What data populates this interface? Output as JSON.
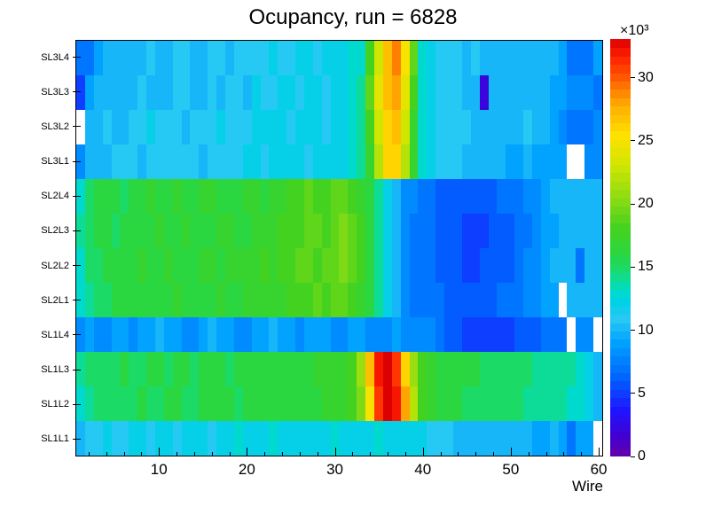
{
  "chart": {
    "title": "Ocupancy, run = 6828",
    "xlabel": "Wire",
    "exponent_label": "×10³"
  },
  "chart_data": {
    "type": "heatmap",
    "title": "Ocupancy, run = 6828",
    "xlabel": "Wire",
    "ylabel": "",
    "x_range": [
      0.5,
      60.5
    ],
    "x_ticks": [
      10,
      20,
      30,
      40,
      50,
      60
    ],
    "x_minor_tick_step": 2,
    "zmin": 0,
    "zmax": 33,
    "z_unit": 1000,
    "z_scale_label": "×10³",
    "colorbar_ticks": [
      0,
      5,
      10,
      15,
      20,
      25,
      30
    ],
    "colorbar_position": "right",
    "empty_bin_color": "#ffffff",
    "values_note": "bin contents in units of 10^3 counts; 0 = empty bin drawn white",
    "palette": [
      [
        0.0,
        "#6400AA"
      ],
      [
        0.05,
        "#4100D2"
      ],
      [
        0.11,
        "#1E14FF"
      ],
      [
        0.19,
        "#0064FF"
      ],
      [
        0.27,
        "#00A0FF"
      ],
      [
        0.33,
        "#28C8F5"
      ],
      [
        0.37,
        "#00D2E6"
      ],
      [
        0.4,
        "#00DCC8"
      ],
      [
        0.44,
        "#14DC78"
      ],
      [
        0.48,
        "#28D743"
      ],
      [
        0.55,
        "#46D21E"
      ],
      [
        0.62,
        "#8CDC14"
      ],
      [
        0.7,
        "#D2E600"
      ],
      [
        0.77,
        "#FFE100"
      ],
      [
        0.84,
        "#FFAF00"
      ],
      [
        0.9,
        "#FF6400"
      ],
      [
        0.96,
        "#FF1E00"
      ],
      [
        1.0,
        "#DC0000"
      ]
    ],
    "rows": [
      {
        "label": "SL3L4",
        "values": [
          7,
          7,
          9,
          10,
          10,
          10,
          10,
          10,
          11,
          10,
          10,
          11,
          11,
          10,
          10,
          11,
          11,
          10,
          11,
          11,
          11,
          11,
          12,
          11,
          11,
          12,
          12,
          11,
          12,
          12,
          12,
          13,
          13,
          18,
          23,
          27,
          29,
          25,
          19,
          13,
          12,
          11,
          11,
          11,
          10,
          11,
          10,
          10,
          10,
          10,
          10,
          10,
          10,
          10,
          10,
          9,
          7,
          7,
          7,
          9
        ]
      },
      {
        "label": "SL3L3",
        "values": [
          5,
          9,
          10,
          10,
          10,
          10,
          10,
          11,
          10,
          10,
          10,
          11,
          11,
          10,
          10,
          11,
          10,
          11,
          11,
          10,
          12,
          11,
          11,
          12,
          12,
          11,
          12,
          12,
          11,
          12,
          12,
          13,
          14,
          19,
          24,
          27,
          28,
          24,
          18,
          13,
          12,
          11,
          11,
          11,
          10,
          10,
          2,
          10,
          10,
          10,
          10,
          10,
          10,
          10,
          9,
          9,
          8,
          8,
          8,
          7
        ]
      },
      {
        "label": "SL3L2",
        "values": [
          0,
          10,
          10,
          11,
          10,
          10,
          11,
          11,
          12,
          11,
          11,
          11,
          10,
          11,
          11,
          11,
          12,
          11,
          11,
          11,
          12,
          12,
          12,
          12,
          11,
          12,
          12,
          12,
          11,
          12,
          12,
          13,
          14,
          18,
          23,
          26,
          27,
          23,
          17,
          13,
          12,
          11,
          11,
          11,
          11,
          10,
          10,
          10,
          10,
          10,
          10,
          11,
          10,
          10,
          9,
          8,
          7,
          7,
          7,
          8
        ]
      },
      {
        "label": "SL3L1",
        "values": [
          8,
          10,
          10,
          10,
          11,
          11,
          11,
          10,
          11,
          11,
          11,
          11,
          11,
          11,
          10,
          11,
          11,
          11,
          11,
          12,
          12,
          11,
          12,
          12,
          12,
          12,
          11,
          12,
          12,
          12,
          12,
          13,
          14,
          17,
          22,
          26,
          26,
          22,
          17,
          13,
          12,
          11,
          11,
          11,
          10,
          10,
          10,
          10,
          10,
          9,
          9,
          10,
          9,
          9,
          9,
          9,
          0,
          0,
          8,
          8
        ]
      },
      {
        "label": "SL2L4",
        "values": [
          13,
          15,
          16,
          16,
          16,
          15,
          16,
          16,
          17,
          16,
          16,
          17,
          16,
          16,
          17,
          17,
          16,
          16,
          16,
          17,
          17,
          16,
          17,
          17,
          18,
          18,
          19,
          18,
          18,
          19,
          19,
          18,
          17,
          16,
          14,
          12,
          10,
          8,
          8,
          7,
          7,
          6,
          6,
          6,
          6,
          6,
          6,
          6,
          7,
          7,
          7,
          8,
          8,
          9,
          10,
          10,
          10,
          10,
          10,
          10
        ]
      },
      {
        "label": "SL2L3",
        "values": [
          14,
          15,
          16,
          16,
          15,
          16,
          16,
          16,
          16,
          17,
          16,
          16,
          17,
          16,
          16,
          16,
          17,
          17,
          16,
          16,
          17,
          17,
          17,
          18,
          18,
          18,
          19,
          19,
          18,
          19,
          20,
          19,
          18,
          16,
          14,
          12,
          10,
          8,
          7,
          7,
          7,
          6,
          6,
          6,
          5,
          5,
          5,
          6,
          6,
          6,
          7,
          7,
          8,
          9,
          9,
          10,
          10,
          10,
          10,
          10
        ]
      },
      {
        "label": "SL2L2",
        "values": [
          13,
          15,
          15,
          16,
          16,
          16,
          16,
          17,
          16,
          16,
          17,
          16,
          16,
          16,
          17,
          17,
          16,
          17,
          17,
          17,
          17,
          18,
          17,
          18,
          18,
          19,
          19,
          18,
          19,
          19,
          20,
          19,
          18,
          16,
          14,
          12,
          10,
          8,
          7,
          7,
          7,
          6,
          6,
          6,
          5,
          5,
          6,
          6,
          6,
          6,
          7,
          8,
          8,
          9,
          10,
          10,
          10,
          7,
          10,
          10
        ]
      },
      {
        "label": "SL2L1",
        "values": [
          13,
          14,
          15,
          15,
          16,
          16,
          16,
          16,
          16,
          16,
          16,
          17,
          16,
          16,
          16,
          16,
          17,
          16,
          16,
          17,
          17,
          17,
          17,
          17,
          18,
          18,
          18,
          19,
          18,
          19,
          19,
          18,
          17,
          16,
          14,
          12,
          10,
          8,
          7,
          7,
          7,
          7,
          6,
          6,
          6,
          6,
          6,
          6,
          7,
          7,
          7,
          8,
          8,
          9,
          9,
          0,
          10,
          10,
          10,
          10
        ]
      },
      {
        "label": "SL1L4",
        "values": [
          8,
          9,
          8,
          8,
          9,
          9,
          8,
          9,
          9,
          10,
          9,
          9,
          8,
          8,
          9,
          10,
          9,
          9,
          8,
          8,
          9,
          9,
          10,
          9,
          9,
          8,
          9,
          9,
          9,
          8,
          8,
          9,
          9,
          8,
          8,
          8,
          9,
          8,
          8,
          8,
          8,
          7,
          6,
          6,
          5,
          5,
          5,
          5,
          5,
          5,
          6,
          6,
          6,
          7,
          7,
          7,
          0,
          8,
          8,
          0
        ]
      },
      {
        "label": "SL1L3",
        "values": [
          14,
          15,
          15,
          15,
          15,
          16,
          15,
          15,
          16,
          16,
          15,
          16,
          16,
          15,
          16,
          16,
          16,
          15,
          16,
          16,
          16,
          16,
          16,
          16,
          16,
          16,
          16,
          17,
          17,
          17,
          17,
          18,
          21,
          27,
          32,
          33,
          31,
          26,
          21,
          18,
          17,
          16,
          16,
          16,
          16,
          16,
          15,
          15,
          15,
          15,
          15,
          15,
          14,
          14,
          14,
          14,
          14,
          13,
          12,
          10
        ]
      },
      {
        "label": "SL1L2",
        "values": [
          13,
          14,
          15,
          15,
          15,
          15,
          15,
          16,
          15,
          15,
          16,
          16,
          15,
          15,
          16,
          16,
          16,
          16,
          15,
          16,
          16,
          16,
          16,
          16,
          16,
          16,
          16,
          16,
          17,
          17,
          17,
          18,
          20,
          25,
          31,
          33,
          32,
          28,
          22,
          18,
          17,
          16,
          16,
          16,
          15,
          15,
          15,
          15,
          15,
          15,
          15,
          14,
          14,
          14,
          14,
          14,
          13,
          13,
          12,
          10
        ]
      },
      {
        "label": "SL1L1",
        "values": [
          10,
          11,
          11,
          12,
          11,
          11,
          12,
          12,
          11,
          12,
          12,
          11,
          12,
          12,
          12,
          11,
          12,
          12,
          13,
          12,
          12,
          12,
          13,
          12,
          12,
          12,
          12,
          12,
          12,
          13,
          12,
          12,
          12,
          12,
          13,
          12,
          12,
          12,
          12,
          12,
          11,
          11,
          11,
          10,
          10,
          10,
          10,
          10,
          10,
          10,
          10,
          10,
          9,
          9,
          10,
          9,
          7,
          9,
          9,
          0
        ]
      }
    ]
  }
}
